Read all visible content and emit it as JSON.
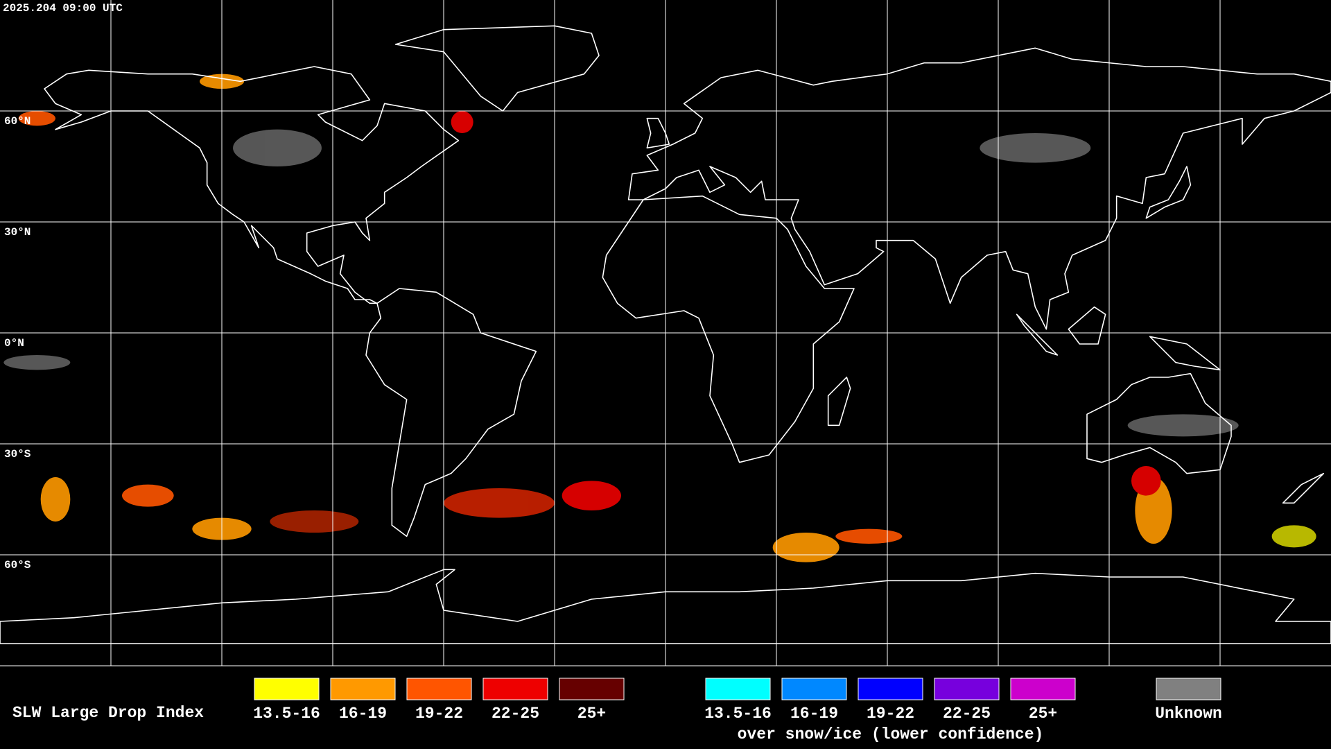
{
  "header": {
    "timestamp": "2025.204 09:00 UTC"
  },
  "map": {
    "latitude_labels": [
      "60°N",
      "30°N",
      "0°N",
      "30°S",
      "60°S"
    ]
  },
  "legend": {
    "title": "SLW Large Drop Index",
    "groups": [
      {
        "items": [
          {
            "label": "13.5-16",
            "color": "#ffff00"
          },
          {
            "label": "16-19",
            "color": "#ff9900"
          },
          {
            "label": "19-22",
            "color": "#ff5500"
          },
          {
            "label": "22-25",
            "color": "#ee0000"
          },
          {
            "label": "25+",
            "color": "#660000"
          }
        ]
      },
      {
        "items": [
          {
            "label": "13.5-16",
            "color": "#00ffff"
          },
          {
            "label": "16-19",
            "color": "#0088ff"
          },
          {
            "label": "19-22",
            "color": "#0000ff"
          },
          {
            "label": "22-25",
            "color": "#7700dd"
          },
          {
            "label": "25+",
            "color": "#cc00cc"
          }
        ],
        "caption": "over snow/ice (lower confidence)"
      }
    ],
    "unknown": {
      "label": "Unknown",
      "color": "#808080"
    }
  }
}
